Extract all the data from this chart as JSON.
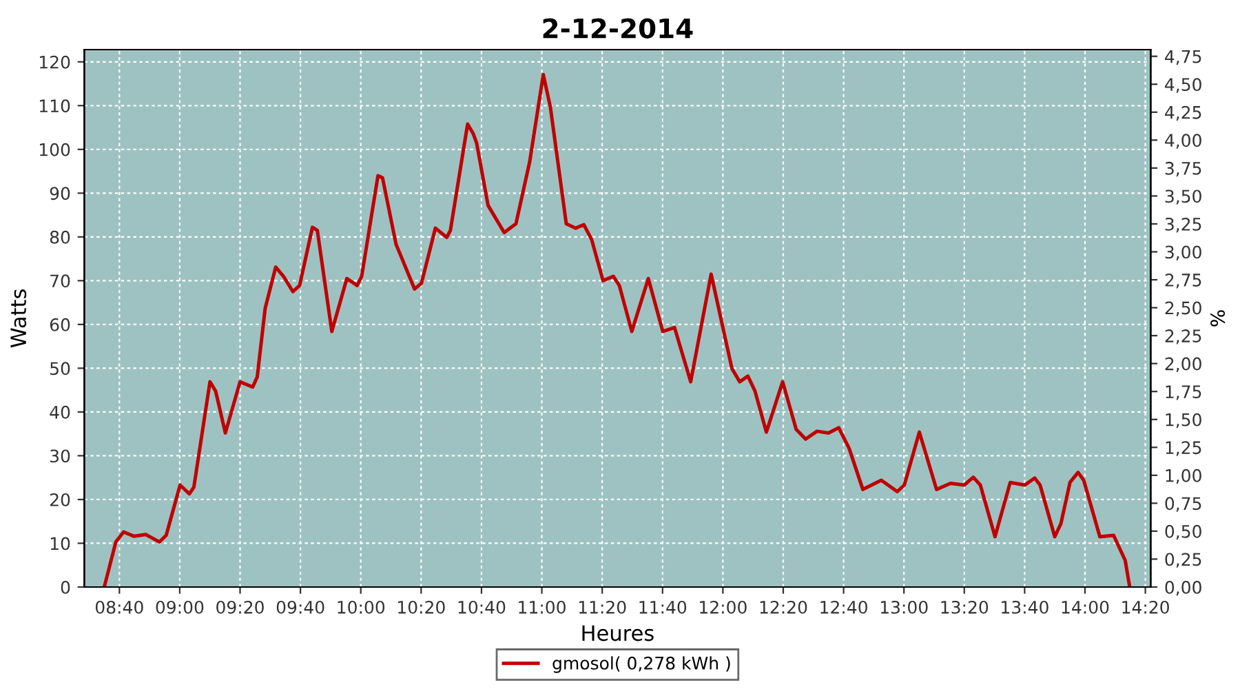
{
  "chart_data": {
    "type": "line",
    "title": "2-12-2014",
    "xlabel": "Heures",
    "ylabel": "Watts",
    "y2label": "%",
    "xlim": [
      8.473,
      14.363
    ],
    "ylim": [
      0,
      122.8
    ],
    "y2lim": [
      0,
      4.81
    ],
    "xticks": [
      {
        "value": 8.6667,
        "label": "08:40"
      },
      {
        "value": 9,
        "label": "09:00"
      },
      {
        "value": 9.3333,
        "label": "09:20"
      },
      {
        "value": 9.6667,
        "label": "09:40"
      },
      {
        "value": 10,
        "label": "10:00"
      },
      {
        "value": 10.3333,
        "label": "10:20"
      },
      {
        "value": 10.6667,
        "label": "10:40"
      },
      {
        "value": 11,
        "label": "11:00"
      },
      {
        "value": 11.3333,
        "label": "11:20"
      },
      {
        "value": 11.6667,
        "label": "11:40"
      },
      {
        "value": 12,
        "label": "12:00"
      },
      {
        "value": 12.3333,
        "label": "12:20"
      },
      {
        "value": 12.6667,
        "label": "12:40"
      },
      {
        "value": 13,
        "label": "13:00"
      },
      {
        "value": 13.3333,
        "label": "13:20"
      },
      {
        "value": 13.6667,
        "label": "13:40"
      },
      {
        "value": 14,
        "label": "14:00"
      },
      {
        "value": 14.3333,
        "label": "14:20"
      }
    ],
    "yticks": [
      0,
      10,
      20,
      30,
      40,
      50,
      60,
      70,
      80,
      90,
      100,
      110,
      120
    ],
    "y2ticks": [
      {
        "value": 0,
        "label": "0,00"
      },
      {
        "value": 0.25,
        "label": "0,25"
      },
      {
        "value": 0.5,
        "label": "0,50"
      },
      {
        "value": 0.75,
        "label": "0,75"
      },
      {
        "value": 1,
        "label": "1,00"
      },
      {
        "value": 1.25,
        "label": "1,25"
      },
      {
        "value": 1.5,
        "label": "1,50"
      },
      {
        "value": 1.75,
        "label": "1,75"
      },
      {
        "value": 2,
        "label": "2,00"
      },
      {
        "value": 2.25,
        "label": "2,25"
      },
      {
        "value": 2.5,
        "label": "2,50"
      },
      {
        "value": 2.75,
        "label": "2,75"
      },
      {
        "value": 3,
        "label": "3,00"
      },
      {
        "value": 3.25,
        "label": "3,25"
      },
      {
        "value": 3.5,
        "label": "3,50"
      },
      {
        "value": 3.75,
        "label": "3,75"
      },
      {
        "value": 4,
        "label": "4,00"
      },
      {
        "value": 4.25,
        "label": "4,25"
      },
      {
        "value": 4.5,
        "label": "4,50"
      },
      {
        "value": 4.75,
        "label": "4,75"
      }
    ],
    "grid": true,
    "legend": "bottom",
    "marker": "none",
    "line_style": "solid",
    "series": [
      {
        "name": "gmosol( 0,278 kWh )",
        "color": "#c00000",
        "x": [
          8.583,
          8.647,
          8.69,
          8.748,
          8.812,
          8.888,
          8.925,
          9.002,
          9.053,
          9.078,
          9.167,
          9.198,
          9.252,
          9.333,
          9.403,
          9.428,
          9.472,
          9.53,
          9.573,
          9.625,
          9.662,
          9.733,
          9.76,
          9.84,
          9.923,
          9.98,
          10.005,
          10.095,
          10.12,
          10.195,
          10.297,
          10.335,
          10.412,
          10.475,
          10.495,
          10.59,
          10.622,
          10.64,
          10.703,
          10.792,
          10.857,
          10.933,
          11.008,
          11.047,
          11.135,
          11.187,
          11.232,
          11.275,
          11.338,
          11.395,
          11.428,
          11.497,
          11.588,
          11.668,
          11.733,
          11.822,
          11.935,
          12.05,
          12.093,
          12.138,
          12.177,
          12.24,
          12.33,
          12.405,
          12.457,
          12.52,
          12.583,
          12.64,
          12.697,
          12.773,
          12.875,
          12.963,
          13.002,
          13.085,
          13.18,
          13.257,
          13.333,
          13.383,
          13.422,
          13.503,
          13.587,
          13.668,
          13.722,
          13.752,
          13.833,
          13.867,
          13.917,
          13.962,
          13.993,
          14.082,
          14.158,
          14.222,
          14.247
        ],
        "values": [
          0,
          10.3,
          12.6,
          11.6,
          12,
          10.3,
          11.8,
          23.3,
          21.3,
          22.8,
          46.9,
          44.8,
          35.2,
          46.9,
          45.7,
          48,
          63.7,
          73.1,
          71,
          67.5,
          68.9,
          82.2,
          81.5,
          58.4,
          70.5,
          68.9,
          71,
          94,
          93.5,
          78.3,
          68.1,
          69.4,
          82,
          79.9,
          81.5,
          105.8,
          103.5,
          101.4,
          87.2,
          81,
          83,
          97.2,
          117.1,
          109.7,
          83,
          82,
          82.8,
          79.4,
          70,
          71,
          68.9,
          58.4,
          70.5,
          58.4,
          59.3,
          46.9,
          71.5,
          49.9,
          46.9,
          48.2,
          44.8,
          35.4,
          46.9,
          36,
          33.8,
          35.6,
          35.2,
          36.4,
          31.7,
          22.3,
          24.4,
          21.8,
          23.3,
          35.4,
          22.3,
          23.7,
          23.3,
          25.1,
          23.3,
          11.5,
          23.9,
          23.3,
          24.9,
          23.3,
          11.5,
          14.5,
          23.9,
          26.2,
          24.4,
          11.5,
          11.8,
          6.1,
          0
        ]
      }
    ]
  }
}
